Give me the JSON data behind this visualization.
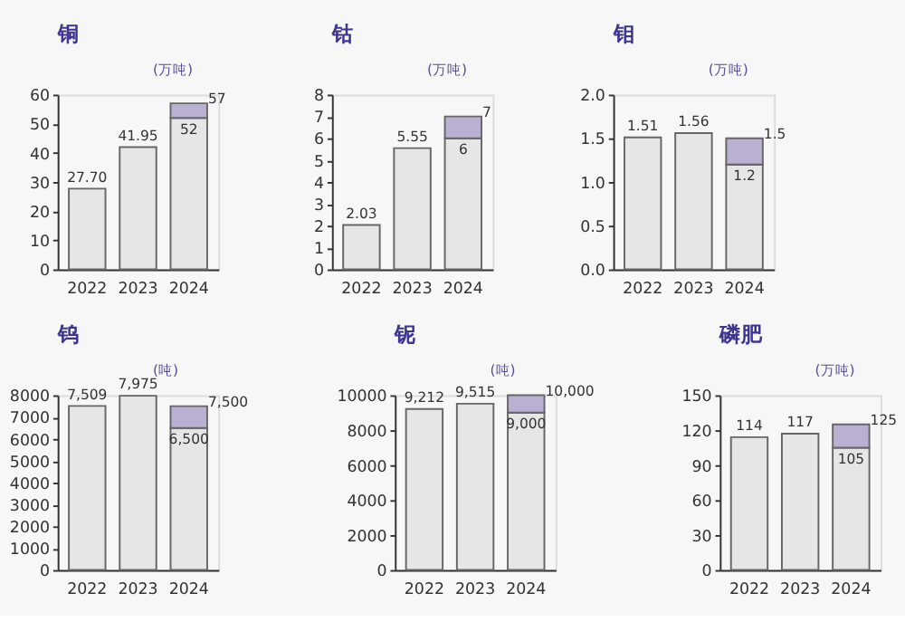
{
  "chart_data": [
    {
      "type": "bar",
      "title": "铜",
      "ylabel": "(万吨)",
      "categories": [
        "2022",
        "2023",
        "2024"
      ],
      "stacked": true,
      "grid": false,
      "legend": false,
      "ylim": [
        0,
        60
      ],
      "yticks": [
        0,
        10,
        20,
        30,
        40,
        50,
        60
      ],
      "series": [
        {
          "color": "#e6e6e6",
          "values": [
            27.7,
            41.95,
            52
          ],
          "value_labels": [
            "27.70",
            "41.95",
            "52"
          ]
        },
        {
          "color": "#b9b0d2",
          "values": [
            null,
            null,
            5
          ]
        }
      ],
      "totals": [
        null,
        null,
        "57"
      ]
    },
    {
      "type": "bar",
      "title": "钴",
      "ylabel": "(万吨)",
      "categories": [
        "2022",
        "2023",
        "2024"
      ],
      "stacked": true,
      "grid": false,
      "legend": false,
      "ylim": [
        0,
        8
      ],
      "yticks": [
        0,
        1,
        2,
        3,
        4,
        5,
        6,
        7,
        8
      ],
      "series": [
        {
          "color": "#e6e6e6",
          "values": [
            2.03,
            5.55,
            6
          ],
          "value_labels": [
            "2.03",
            "5.55",
            "6"
          ]
        },
        {
          "color": "#b9b0d2",
          "values": [
            null,
            null,
            1
          ]
        }
      ],
      "totals": [
        null,
        null,
        "7"
      ]
    },
    {
      "type": "bar",
      "title": "钼",
      "ylabel": "(万吨)",
      "categories": [
        "2022",
        "2023",
        "2024"
      ],
      "stacked": true,
      "grid": false,
      "legend": false,
      "ylim": [
        0,
        2
      ],
      "yticks": [
        {
          "value": 0,
          "label": "0.0"
        },
        0.5,
        {
          "value": 1,
          "label": "1.0"
        },
        1.5,
        {
          "value": 2,
          "label": "2.0"
        }
      ],
      "series": [
        {
          "color": "#e6e6e6",
          "values": [
            1.51,
            1.56,
            1.2
          ],
          "value_labels": [
            "1.51",
            "1.56",
            "1.2"
          ]
        },
        {
          "color": "#b9b0d2",
          "values": [
            null,
            null,
            0.3
          ]
        }
      ],
      "totals": [
        null,
        null,
        "1.5"
      ]
    },
    {
      "type": "bar",
      "title": "钨",
      "ylabel": "(吨)",
      "categories": [
        "2022",
        "2023",
        "2024"
      ],
      "stacked": true,
      "grid": false,
      "legend": false,
      "ylim": [
        0,
        8000
      ],
      "yticks": [
        0,
        1000,
        2000,
        3000,
        4000,
        5000,
        6000,
        7000,
        8000
      ],
      "series": [
        {
          "color": "#e6e6e6",
          "values": [
            7509,
            7975,
            6500
          ],
          "value_labels": [
            "7,509",
            "7,975",
            "6,500"
          ]
        },
        {
          "color": "#b9b0d2",
          "values": [
            null,
            null,
            1000
          ]
        }
      ],
      "totals": [
        null,
        null,
        "7,500"
      ]
    },
    {
      "type": "bar",
      "title": "铌",
      "ylabel": "(吨)",
      "categories": [
        "2022",
        "2023",
        "2024"
      ],
      "stacked": true,
      "grid": false,
      "legend": false,
      "ylim": [
        0,
        10000
      ],
      "yticks": [
        0,
        2000,
        4000,
        6000,
        8000,
        10000
      ],
      "series": [
        {
          "color": "#e6e6e6",
          "values": [
            9212,
            9515,
            9000
          ],
          "value_labels": [
            "9,212",
            "9,515",
            "9,000"
          ]
        },
        {
          "color": "#b9b0d2",
          "values": [
            null,
            null,
            1000
          ]
        }
      ],
      "totals": [
        null,
        null,
        "10,000"
      ]
    },
    {
      "type": "bar",
      "title": "磷肥",
      "ylabel": "(万吨)",
      "categories": [
        "2022",
        "2023",
        "2024"
      ],
      "stacked": true,
      "grid": false,
      "legend": false,
      "ylim": [
        0,
        150
      ],
      "yticks": [
        0,
        30,
        60,
        90,
        120,
        150
      ],
      "series": [
        {
          "color": "#e6e6e6",
          "values": [
            114,
            117,
            105
          ],
          "value_labels": [
            "114",
            "117",
            "105"
          ]
        },
        {
          "color": "#b9b0d2",
          "values": [
            null,
            null,
            20
          ]
        }
      ],
      "totals": [
        null,
        null,
        "125"
      ]
    }
  ]
}
